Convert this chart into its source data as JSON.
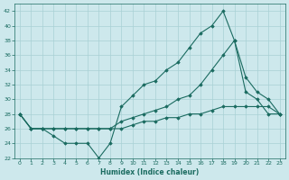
{
  "xlabel": "Humidex (Indice chaleur)",
  "bg_color": "#cde8ec",
  "line_color": "#1a6b60",
  "grid_color": "#a8d0d4",
  "xlim": [
    -0.5,
    23.5
  ],
  "ylim": [
    22,
    43
  ],
  "xticks": [
    0,
    1,
    2,
    3,
    4,
    5,
    6,
    7,
    8,
    9,
    10,
    11,
    12,
    13,
    14,
    15,
    16,
    17,
    18,
    19,
    20,
    21,
    22,
    23
  ],
  "yticks": [
    22,
    24,
    26,
    28,
    30,
    32,
    34,
    36,
    38,
    40,
    42
  ],
  "line1_x": [
    0,
    1,
    2,
    3,
    4,
    5,
    6,
    7,
    8,
    9,
    10,
    11,
    12,
    13,
    14,
    15,
    16,
    17,
    18,
    19,
    20,
    21,
    22,
    23
  ],
  "line1_y": [
    28,
    26,
    26,
    25,
    24,
    24,
    24,
    22,
    24,
    29,
    30.5,
    32,
    32.5,
    34,
    35,
    37,
    39,
    40,
    42,
    38,
    31,
    30,
    28,
    28
  ],
  "line2_x": [
    0,
    1,
    2,
    3,
    4,
    5,
    6,
    7,
    8,
    9,
    10,
    11,
    12,
    13,
    14,
    15,
    16,
    17,
    18,
    19,
    20,
    21,
    22,
    23
  ],
  "line2_y": [
    28,
    26,
    26,
    26,
    26,
    26,
    26,
    26,
    26,
    26,
    26.5,
    27,
    27,
    27.5,
    27.5,
    28,
    28,
    28.5,
    29,
    29,
    29,
    29,
    29,
    28
  ],
  "line3_x": [
    0,
    1,
    2,
    3,
    4,
    5,
    6,
    7,
    8,
    9,
    10,
    11,
    12,
    13,
    14,
    15,
    16,
    17,
    18,
    19,
    20,
    21,
    22,
    23
  ],
  "line3_y": [
    28,
    26,
    26,
    26,
    26,
    26,
    26,
    26,
    26,
    27,
    27.5,
    28,
    28.5,
    29,
    30,
    30.5,
    32,
    34,
    36,
    38,
    33,
    31,
    30,
    28
  ]
}
